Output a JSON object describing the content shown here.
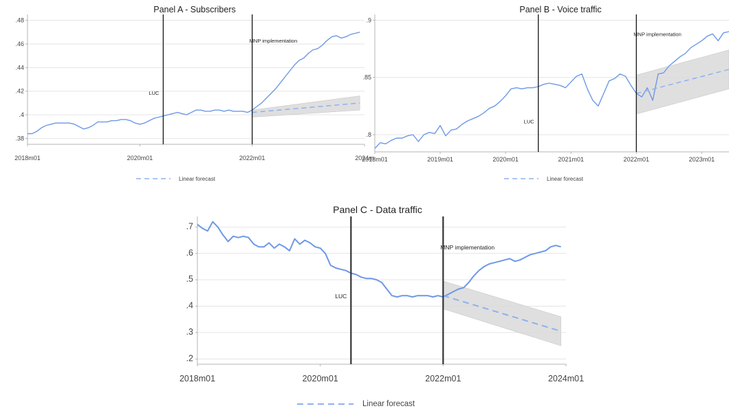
{
  "chart_data": [
    {
      "id": "A",
      "type": "line",
      "title": "Panel A - Subscribers",
      "ylim": [
        0.375,
        0.485
      ],
      "yticks": [
        0.38,
        0.4,
        0.42,
        0.44,
        0.46,
        0.48
      ],
      "ytick_labels": [
        ".38",
        ".4",
        ".42",
        ".44",
        ".46",
        ".48"
      ],
      "xlim": [
        0,
        72
      ],
      "xticks": [
        0,
        24,
        48,
        72
      ],
      "xtick_labels": [
        "2018m01",
        "2020m01",
        "2022m01",
        "2024m"
      ],
      "grid": true,
      "series": [
        {
          "style": "solid",
          "x": [
            0,
            1,
            2,
            3,
            4,
            5,
            6,
            7,
            8,
            9,
            10,
            11,
            12,
            13,
            14,
            15,
            16,
            17,
            18,
            19,
            20,
            21,
            22,
            23,
            24,
            25,
            26,
            27,
            28,
            29,
            30,
            31,
            32,
            33,
            34,
            35,
            36,
            37,
            38,
            39,
            40,
            41,
            42,
            43,
            44,
            45,
            46,
            47,
            48,
            49,
            50,
            51,
            52,
            53,
            54,
            55,
            56,
            57,
            58,
            59,
            60,
            61,
            62,
            63,
            64,
            65,
            66,
            67,
            68,
            69,
            70,
            71
          ],
          "y": [
            0.384,
            0.384,
            0.386,
            0.389,
            0.391,
            0.392,
            0.393,
            0.393,
            0.393,
            0.393,
            0.392,
            0.39,
            0.388,
            0.389,
            0.391,
            0.394,
            0.394,
            0.394,
            0.395,
            0.395,
            0.396,
            0.396,
            0.395,
            0.393,
            0.392,
            0.393,
            0.395,
            0.397,
            0.398,
            0.399,
            0.4,
            0.401,
            0.402,
            0.401,
            0.4,
            0.402,
            0.404,
            0.404,
            0.403,
            0.403,
            0.404,
            0.404,
            0.403,
            0.404,
            0.403,
            0.403,
            0.403,
            0.402,
            0.404,
            0.407,
            0.41,
            0.414,
            0.418,
            0.422,
            0.427,
            0.432,
            0.437,
            0.442,
            0.446,
            0.448,
            0.452,
            0.455,
            0.456,
            0.459,
            0.463,
            0.466,
            0.467,
            0.465,
            0.466,
            0.468,
            0.469,
            0.47
          ]
        },
        {
          "name": "Linear forecast",
          "style": "dashed",
          "x": [
            48,
            71
          ],
          "y": [
            0.402,
            0.41
          ]
        }
      ],
      "ci_band": {
        "x": [
          48,
          71
        ],
        "lower": [
          0.398,
          0.404
        ],
        "upper": [
          0.404,
          0.416
        ]
      },
      "vlines": [
        {
          "x": 29,
          "label": "LUC",
          "label_y": 0.417
        },
        {
          "x": 48,
          "label": "MNP implementation",
          "label_y": 0.461
        }
      ],
      "legend": "Linear forecast"
    },
    {
      "id": "B",
      "type": "line",
      "title": "Panel B - Voice traffic",
      "ylim": [
        0.785,
        0.905
      ],
      "yticks": [
        0.8,
        0.85,
        0.9
      ],
      "ytick_labels": [
        ".8",
        ".85",
        ".9"
      ],
      "xlim": [
        0,
        65
      ],
      "xticks": [
        0,
        12,
        24,
        36,
        48,
        60
      ],
      "xtick_labels": [
        "2018m01",
        "2019m01",
        "2020m01",
        "2021m01",
        "2022m01",
        "2023m01"
      ],
      "grid": true,
      "series": [
        {
          "style": "solid",
          "x": [
            0,
            1,
            2,
            3,
            4,
            5,
            6,
            7,
            8,
            9,
            10,
            11,
            12,
            13,
            14,
            15,
            16,
            17,
            18,
            19,
            20,
            21,
            22,
            23,
            24,
            25,
            26,
            27,
            28,
            29,
            30,
            31,
            32,
            33,
            34,
            35,
            36,
            37,
            38,
            39,
            40,
            41,
            42,
            43,
            44,
            45,
            46,
            47,
            48,
            49,
            50,
            51,
            52,
            53,
            54,
            55,
            56,
            57,
            58,
            59,
            60,
            61,
            62,
            63,
            64,
            65
          ],
          "y": [
            0.788,
            0.793,
            0.792,
            0.795,
            0.797,
            0.797,
            0.799,
            0.8,
            0.794,
            0.8,
            0.802,
            0.801,
            0.808,
            0.799,
            0.804,
            0.805,
            0.809,
            0.812,
            0.814,
            0.816,
            0.819,
            0.823,
            0.825,
            0.829,
            0.834,
            0.84,
            0.841,
            0.84,
            0.841,
            0.841,
            0.842,
            0.844,
            0.845,
            0.844,
            0.843,
            0.841,
            0.846,
            0.851,
            0.853,
            0.84,
            0.83,
            0.825,
            0.836,
            0.847,
            0.849,
            0.853,
            0.851,
            0.843,
            0.836,
            0.833,
            0.841,
            0.83,
            0.853,
            0.854,
            0.86,
            0.864,
            0.868,
            0.871,
            0.876,
            0.879,
            0.882,
            0.886,
            0.888,
            0.882,
            0.889,
            0.89
          ]
        },
        {
          "name": "Linear forecast",
          "style": "dashed",
          "x": [
            48,
            65
          ],
          "y": [
            0.836,
            0.857
          ]
        }
      ],
      "ci_band": {
        "x": [
          48,
          65
        ],
        "lower": [
          0.818,
          0.84
        ],
        "upper": [
          0.852,
          0.874
        ]
      },
      "vlines": [
        {
          "x": 30,
          "label": "LUC",
          "label_y": 0.81
        },
        {
          "x": 48,
          "label": "MNP implementation",
          "label_y": 0.886
        }
      ],
      "legend": "Linear forecast"
    },
    {
      "id": "C",
      "type": "line",
      "title": "Panel C - Data traffic",
      "ylim": [
        0.18,
        0.74
      ],
      "yticks": [
        0.2,
        0.3,
        0.4,
        0.5,
        0.6,
        0.7
      ],
      "ytick_labels": [
        ".2",
        ".3",
        ".4",
        ".5",
        ".6",
        ".7"
      ],
      "xlim": [
        0,
        72
      ],
      "xticks": [
        0,
        24,
        48,
        72
      ],
      "xtick_labels": [
        "2018m01",
        "2020m01",
        "2022m01",
        "2024m01"
      ],
      "grid": true,
      "series": [
        {
          "style": "solid",
          "x": [
            0,
            1,
            2,
            3,
            4,
            5,
            6,
            7,
            8,
            9,
            10,
            11,
            12,
            13,
            14,
            15,
            16,
            17,
            18,
            19,
            20,
            21,
            22,
            23,
            24,
            25,
            26,
            27,
            28,
            29,
            30,
            31,
            32,
            33,
            34,
            35,
            36,
            37,
            38,
            39,
            40,
            41,
            42,
            43,
            44,
            45,
            46,
            47,
            48,
            49,
            50,
            51,
            52,
            53,
            54,
            55,
            56,
            57,
            58,
            59,
            60,
            61,
            62,
            63,
            64,
            65,
            66,
            67,
            68,
            69,
            70,
            71
          ],
          "y": [
            0.71,
            0.695,
            0.685,
            0.72,
            0.7,
            0.67,
            0.645,
            0.665,
            0.66,
            0.665,
            0.66,
            0.635,
            0.625,
            0.625,
            0.64,
            0.62,
            0.635,
            0.625,
            0.61,
            0.655,
            0.635,
            0.65,
            0.64,
            0.625,
            0.62,
            0.6,
            0.555,
            0.545,
            0.54,
            0.535,
            0.525,
            0.52,
            0.51,
            0.505,
            0.505,
            0.5,
            0.49,
            0.465,
            0.44,
            0.435,
            0.44,
            0.44,
            0.435,
            0.44,
            0.44,
            0.44,
            0.435,
            0.44,
            0.435,
            0.445,
            0.455,
            0.465,
            0.47,
            0.49,
            0.515,
            0.535,
            0.55,
            0.56,
            0.565,
            0.57,
            0.575,
            0.58,
            0.57,
            0.575,
            0.585,
            0.595,
            0.6,
            0.605,
            0.61,
            0.625,
            0.63,
            0.625
          ]
        },
        {
          "name": "Linear forecast",
          "style": "dashed",
          "x": [
            48,
            71
          ],
          "y": [
            0.44,
            0.305
          ]
        }
      ],
      "ci_band": {
        "x": [
          48,
          71
        ],
        "lower": [
          0.39,
          0.25
        ],
        "upper": [
          0.495,
          0.36
        ]
      },
      "vlines": [
        {
          "x": 30,
          "label": "LUC",
          "label_y": 0.43
        },
        {
          "x": 48,
          "label": "MNP implementation",
          "label_y": 0.615
        }
      ],
      "legend": "Linear forecast"
    }
  ],
  "colors": {
    "line": "#6d98e6",
    "forecast": "#8fb0ee",
    "band": "#d9d9d9",
    "vline": "#222222"
  }
}
